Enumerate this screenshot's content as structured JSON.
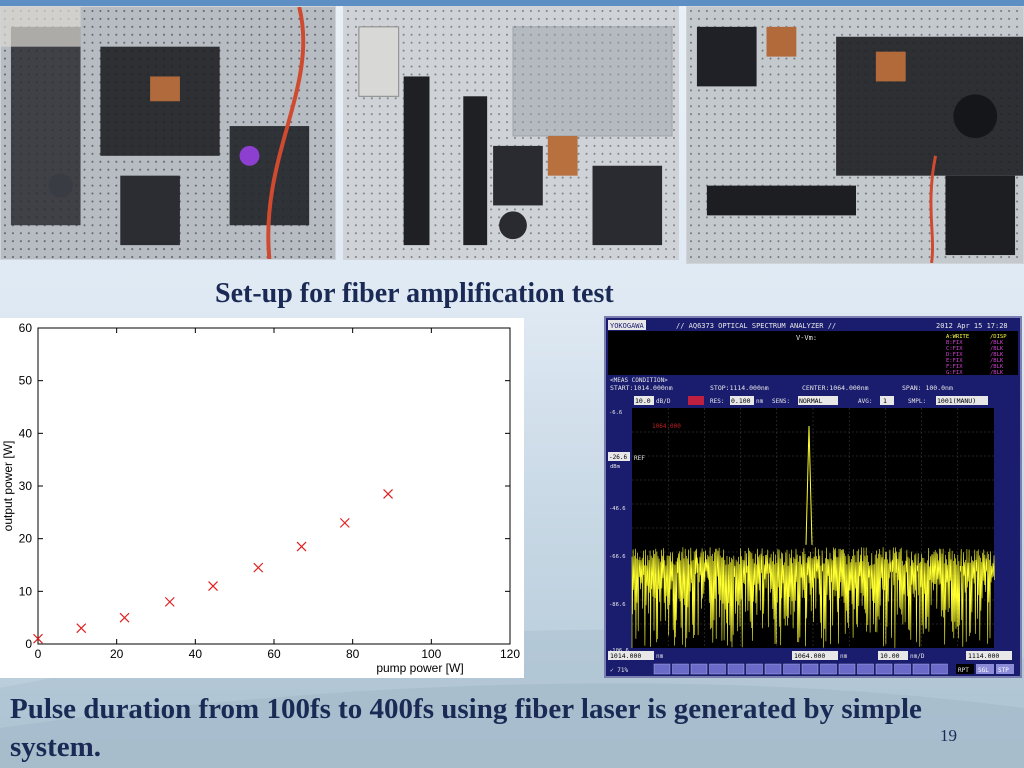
{
  "slide": {
    "caption": "Set-up for fiber amplification test",
    "bottom_text": "Pulse duration from 100fs to 400fs using fiber laser is generated by simple system.",
    "page_number": "19"
  },
  "chart_data": {
    "type": "scatter",
    "title": "",
    "xlabel": "pump power [W]",
    "ylabel": "output power [W]",
    "xlim": [
      0,
      120
    ],
    "ylim": [
      0,
      60
    ],
    "xticks": [
      0,
      20,
      40,
      60,
      80,
      100,
      120
    ],
    "yticks": [
      0,
      10,
      20,
      30,
      40,
      50,
      60
    ],
    "marker": "x",
    "marker_color": "#e02020",
    "grid": false,
    "x": [
      0,
      11,
      22,
      33.5,
      44.5,
      56,
      67,
      78,
      89
    ],
    "y": [
      1,
      3,
      5,
      8,
      11,
      14.5,
      18.5,
      23,
      28.5
    ]
  },
  "osa": {
    "brand": "YOKOGAWA",
    "title": "// AQ6373 OPTICAL SPECTRUM ANALYZER //",
    "datetime": "2012 Apr 15 17:28",
    "marker_label": "V-Vm:",
    "trace_labels": [
      "A:WRITE",
      "B:FIX",
      "C:FIX",
      "D:FIX",
      "E:FIX",
      "F:FIX",
      "G:FIX"
    ],
    "trace_states": [
      "/DISP",
      "/BLK",
      "/BLK",
      "/BLK",
      "/BLK",
      "/BLK",
      "/BLK"
    ],
    "cond_label": "<MEAS CONDITION>",
    "start": "START:1014.000nm",
    "stop": "STOP:1114.000nm",
    "center": "CENTER:1064.000nm",
    "span": "SPAN: 100.0nm",
    "scale": "10.0",
    "scale_unit": "dB/D",
    "res_label": "RES:",
    "res": "0.100",
    "res_unit": "nm",
    "sens_label": "SENS:",
    "sens": "NORMAL",
    "avg_label": "AVG:",
    "avg": "1",
    "smpl_label": "SMPL:",
    "smpl": "1001(MANU)",
    "ref_level": "-26.6",
    "ref_unit": "dBm",
    "ref_tag": "REF",
    "y_levels": [
      "-6.6",
      "-46.6",
      "-66.6",
      "-86.6",
      "-106.6"
    ],
    "x_start": "1014.000",
    "x_center": "1064.000",
    "x_stop": "1114.000",
    "x_unit": "nm",
    "x_div": "10.00",
    "x_div_unit": "nm/D",
    "peak_wavelength": "1064.000",
    "footer_left": "✓ 71%",
    "softkeys": [
      "RPT",
      "SGL",
      "STP"
    ]
  }
}
